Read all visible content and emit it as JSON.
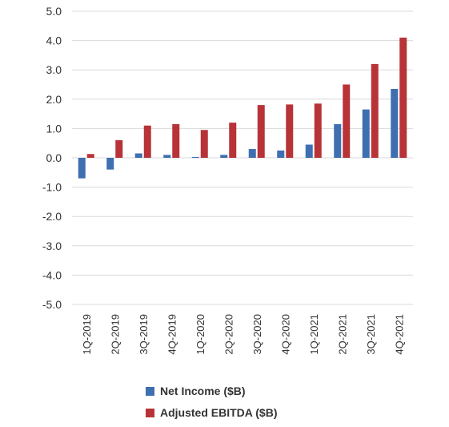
{
  "chart_data": {
    "type": "bar",
    "categories": [
      "1Q-2019",
      "2Q-2019",
      "3Q-2019",
      "4Q-2019",
      "1Q-2020",
      "2Q-2020",
      "3Q-2020",
      "4Q-2020",
      "1Q-2021",
      "2Q-2021",
      "3Q-2021",
      "4Q-2021"
    ],
    "series": [
      {
        "name": "Net Income ($B)",
        "color": "#3e6fb0",
        "values": [
          -0.7,
          -0.4,
          0.15,
          0.1,
          0.03,
          0.1,
          0.3,
          0.25,
          0.45,
          1.15,
          1.65,
          2.35
        ]
      },
      {
        "name": "Adjusted EBITDA ($B)",
        "color": "#b83338",
        "values": [
          0.13,
          0.6,
          1.1,
          1.15,
          0.95,
          1.2,
          1.8,
          1.82,
          1.85,
          2.5,
          3.2,
          4.1
        ]
      }
    ],
    "yticks": [
      "5.0",
      "4.0",
      "3.0",
      "2.0",
      "1.0",
      "0.0",
      "-1.0",
      "-2.0",
      "-3.0",
      "-4.0",
      "-5.0"
    ],
    "ylim": [
      -5,
      5
    ],
    "grid": true,
    "legend_position": "bottom",
    "title": "",
    "xlabel": "",
    "ylabel": ""
  }
}
